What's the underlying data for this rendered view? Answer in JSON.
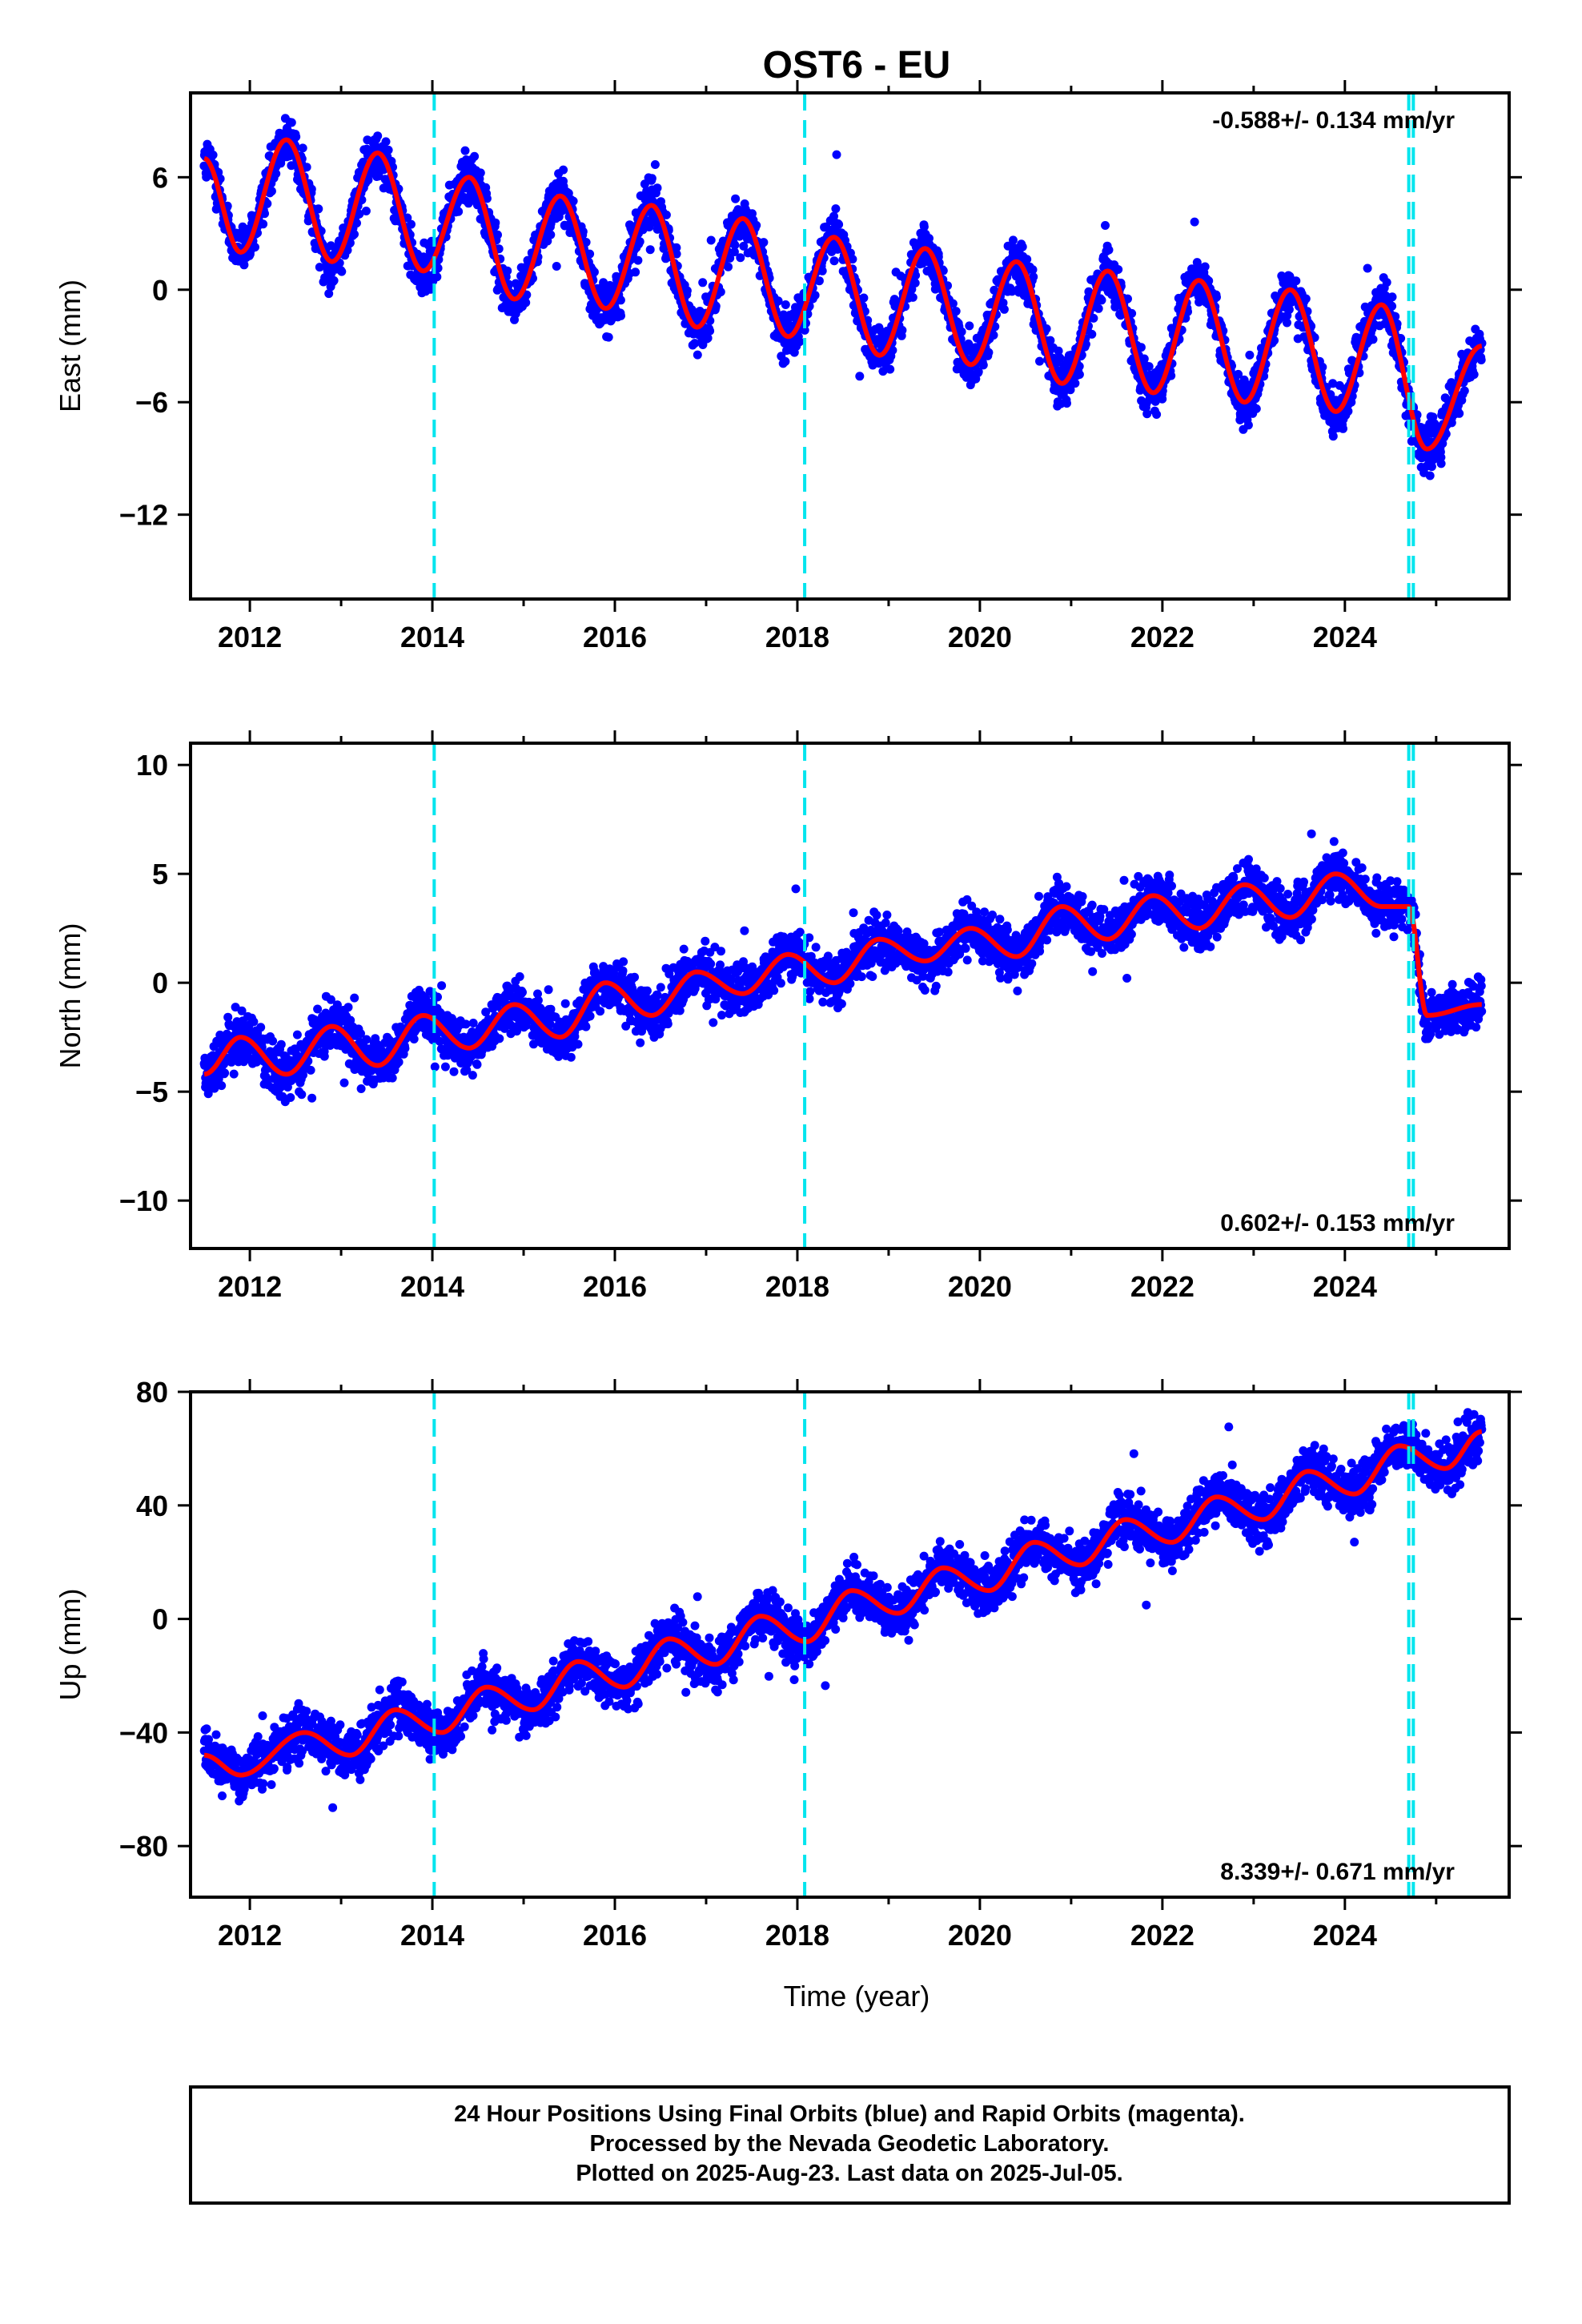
{
  "title": "OST6 - EU",
  "xlabel": "Time (year)",
  "caption": [
    "24 Hour Positions Using Final Orbits (blue) and Rapid Orbits (magenta).",
    "Processed by the Nevada Geodetic Laboratory.",
    "Plotted on 2025-Aug-23. Last data on 2025-Jul-05."
  ],
  "colors": {
    "points": "#0000ff",
    "fit": "#ff0000",
    "events": "#00e5ee",
    "frame": "#000000"
  },
  "chart_data": [
    {
      "type": "scatter",
      "component": "East",
      "ylabel": "East (mm)",
      "rate_label": "-0.588+/- 0.134 mm/yr",
      "rate_position": "top-right",
      "xlim": [
        2011.35,
        2025.8
      ],
      "ylim": [
        -16.5,
        10.5
      ],
      "yticks": [
        6,
        0,
        -6,
        -12
      ],
      "ytick_labels": [
        "6",
        "0",
        "−6",
        "−12"
      ],
      "xticks": [
        2012,
        2014,
        2016,
        2018,
        2020,
        2022,
        2024
      ],
      "events": [
        2014.02,
        2018.08,
        2024.7,
        2024.75
      ],
      "series": [
        {
          "name": "Final Orbits (blue)",
          "x_range": [
            2011.5,
            2025.5
          ],
          "sample_points": [
            [
              2011.5,
              7.0
            ],
            [
              2011.9,
              2.0
            ],
            [
              2012.4,
              8.0
            ],
            [
              2012.9,
              1.5
            ],
            [
              2013.4,
              7.3
            ],
            [
              2013.9,
              1.0
            ],
            [
              2014.4,
              6.0
            ],
            [
              2014.9,
              -0.5
            ],
            [
              2015.4,
              5.0
            ],
            [
              2015.9,
              -1.0
            ],
            [
              2016.4,
              4.5
            ],
            [
              2016.9,
              -2.0
            ],
            [
              2017.4,
              3.8
            ],
            [
              2017.9,
              -2.5
            ],
            [
              2018.4,
              2.8
            ],
            [
              2018.9,
              -3.5
            ],
            [
              2019.4,
              2.2
            ],
            [
              2019.9,
              -4.0
            ],
            [
              2020.4,
              1.5
            ],
            [
              2020.9,
              -5.0
            ],
            [
              2021.4,
              1.0
            ],
            [
              2021.9,
              -5.5
            ],
            [
              2022.4,
              0.5
            ],
            [
              2022.9,
              -6.0
            ],
            [
              2023.4,
              0.0
            ],
            [
              2023.9,
              -6.5
            ],
            [
              2024.4,
              -0.8
            ],
            [
              2024.9,
              -8.5
            ],
            [
              2025.5,
              -3.0
            ]
          ]
        }
      ],
      "fit": {
        "name": "fit",
        "points": [
          [
            2011.5,
            7.0
          ],
          [
            2011.9,
            2.0
          ],
          [
            2012.4,
            8.0
          ],
          [
            2012.9,
            1.5
          ],
          [
            2013.4,
            7.3
          ],
          [
            2013.9,
            1.0
          ],
          [
            2014.4,
            6.0
          ],
          [
            2014.9,
            -0.5
          ],
          [
            2015.4,
            5.0
          ],
          [
            2015.9,
            -1.0
          ],
          [
            2016.4,
            4.5
          ],
          [
            2016.9,
            -2.0
          ],
          [
            2017.4,
            3.8
          ],
          [
            2017.9,
            -2.5
          ],
          [
            2018.4,
            2.8
          ],
          [
            2018.9,
            -3.5
          ],
          [
            2019.4,
            2.2
          ],
          [
            2019.9,
            -4.0
          ],
          [
            2020.4,
            1.5
          ],
          [
            2020.9,
            -5.0
          ],
          [
            2021.4,
            1.0
          ],
          [
            2021.9,
            -5.5
          ],
          [
            2022.4,
            0.5
          ],
          [
            2022.9,
            -6.0
          ],
          [
            2023.4,
            0.0
          ],
          [
            2023.9,
            -6.5
          ],
          [
            2024.4,
            -0.8
          ],
          [
            2024.9,
            -8.5
          ],
          [
            2025.5,
            -3.0
          ]
        ]
      }
    },
    {
      "type": "scatter",
      "component": "North",
      "ylabel": "North (mm)",
      "rate_label": "0.602+/- 0.153 mm/yr",
      "rate_position": "bottom-right",
      "xlim": [
        2011.35,
        2025.8
      ],
      "ylim": [
        -12.2,
        11.0
      ],
      "yticks": [
        10,
        5,
        0,
        -5,
        -10
      ],
      "ytick_labels": [
        "10",
        "5",
        "0",
        "−5",
        "−10"
      ],
      "xticks": [
        2012,
        2014,
        2016,
        2018,
        2020,
        2022,
        2024
      ],
      "events": [
        2014.02,
        2018.08,
        2024.7,
        2024.75
      ],
      "series": [
        {
          "name": "Final Orbits (blue)",
          "x_range": [
            2011.5,
            2025.5
          ],
          "sample_points": [
            [
              2011.5,
              -4.2
            ],
            [
              2011.9,
              -2.5
            ],
            [
              2012.4,
              -4.2
            ],
            [
              2012.9,
              -2.0
            ],
            [
              2013.4,
              -3.8
            ],
            [
              2013.9,
              -1.5
            ],
            [
              2014.4,
              -3.0
            ],
            [
              2014.9,
              -1.0
            ],
            [
              2015.4,
              -2.5
            ],
            [
              2015.9,
              0.0
            ],
            [
              2016.4,
              -1.5
            ],
            [
              2016.9,
              0.5
            ],
            [
              2017.4,
              -0.5
            ],
            [
              2017.9,
              1.3
            ],
            [
              2018.4,
              0.0
            ],
            [
              2018.9,
              2.0
            ],
            [
              2019.4,
              1.0
            ],
            [
              2019.9,
              2.5
            ],
            [
              2020.4,
              1.2
            ],
            [
              2020.9,
              3.5
            ],
            [
              2021.4,
              2.0
            ],
            [
              2021.9,
              4.0
            ],
            [
              2022.4,
              2.5
            ],
            [
              2022.9,
              4.5
            ],
            [
              2023.4,
              3.0
            ],
            [
              2023.9,
              5.0
            ],
            [
              2024.4,
              3.5
            ],
            [
              2024.7,
              3.5
            ],
            [
              2024.9,
              -1.5
            ],
            [
              2025.5,
              -1.0
            ]
          ]
        }
      ],
      "fit": {
        "name": "fit",
        "points": [
          [
            2011.5,
            -4.2
          ],
          [
            2011.9,
            -2.5
          ],
          [
            2012.4,
            -4.2
          ],
          [
            2012.9,
            -2.0
          ],
          [
            2013.4,
            -3.8
          ],
          [
            2013.9,
            -1.5
          ],
          [
            2014.4,
            -3.0
          ],
          [
            2014.9,
            -1.0
          ],
          [
            2015.4,
            -2.5
          ],
          [
            2015.9,
            0.0
          ],
          [
            2016.4,
            -1.5
          ],
          [
            2016.9,
            0.5
          ],
          [
            2017.4,
            -0.5
          ],
          [
            2017.9,
            1.3
          ],
          [
            2018.4,
            0.0
          ],
          [
            2018.9,
            2.0
          ],
          [
            2019.4,
            1.0
          ],
          [
            2019.9,
            2.5
          ],
          [
            2020.4,
            1.2
          ],
          [
            2020.9,
            3.5
          ],
          [
            2021.4,
            2.0
          ],
          [
            2021.9,
            4.0
          ],
          [
            2022.4,
            2.5
          ],
          [
            2022.9,
            4.5
          ],
          [
            2023.4,
            3.0
          ],
          [
            2023.9,
            5.0
          ],
          [
            2024.4,
            3.5
          ],
          [
            2024.7,
            3.5
          ],
          [
            2024.9,
            -1.5
          ],
          [
            2025.5,
            -1.0
          ]
        ]
      }
    },
    {
      "type": "scatter",
      "component": "Up",
      "ylabel": "Up (mm)",
      "rate_label": "8.339+/- 0.671 mm/yr",
      "rate_position": "bottom-right",
      "xlim": [
        2011.35,
        2025.8
      ],
      "ylim": [
        -98,
        80
      ],
      "yticks": [
        80,
        40,
        0,
        -40,
        -80
      ],
      "ytick_labels": [
        "80",
        "40",
        "0",
        "−40",
        "−80"
      ],
      "xticks": [
        2012,
        2014,
        2016,
        2018,
        2020,
        2022,
        2024
      ],
      "events": [
        2014.02,
        2018.08,
        2024.7,
        2024.75
      ],
      "series": [
        {
          "name": "Final Orbits (blue)",
          "x_range": [
            2011.5,
            2025.5
          ],
          "sample_points": [
            [
              2011.5,
              -48.0
            ],
            [
              2011.9,
              -55.0
            ],
            [
              2012.6,
              -40.0
            ],
            [
              2013.1,
              -48.0
            ],
            [
              2013.6,
              -32.0
            ],
            [
              2014.1,
              -40.0
            ],
            [
              2014.6,
              -24.0
            ],
            [
              2015.1,
              -32.0
            ],
            [
              2015.6,
              -15.0
            ],
            [
              2016.1,
              -24.0
            ],
            [
              2016.6,
              -7.0
            ],
            [
              2017.1,
              -16.0
            ],
            [
              2017.6,
              1.0
            ],
            [
              2018.1,
              -8.0
            ],
            [
              2018.6,
              10.0
            ],
            [
              2019.1,
              2.0
            ],
            [
              2019.6,
              18.0
            ],
            [
              2020.1,
              10.0
            ],
            [
              2020.6,
              27.0
            ],
            [
              2021.1,
              19.0
            ],
            [
              2021.6,
              35.0
            ],
            [
              2022.1,
              27.0
            ],
            [
              2022.6,
              43.0
            ],
            [
              2023.1,
              35.0
            ],
            [
              2023.6,
              52.0
            ],
            [
              2024.1,
              44.0
            ],
            [
              2024.6,
              61.0
            ],
            [
              2025.1,
              53.0
            ],
            [
              2025.5,
              66.0
            ]
          ]
        }
      ],
      "fit": {
        "name": "fit",
        "points": [
          [
            2011.5,
            -48.0
          ],
          [
            2011.9,
            -55.0
          ],
          [
            2012.6,
            -40.0
          ],
          [
            2013.1,
            -48.0
          ],
          [
            2013.6,
            -32.0
          ],
          [
            2014.1,
            -40.0
          ],
          [
            2014.6,
            -24.0
          ],
          [
            2015.1,
            -32.0
          ],
          [
            2015.6,
            -15.0
          ],
          [
            2016.1,
            -24.0
          ],
          [
            2016.6,
            -7.0
          ],
          [
            2017.1,
            -16.0
          ],
          [
            2017.6,
            1.0
          ],
          [
            2018.1,
            -8.0
          ],
          [
            2018.6,
            10.0
          ],
          [
            2019.1,
            2.0
          ],
          [
            2019.6,
            18.0
          ],
          [
            2020.1,
            10.0
          ],
          [
            2020.6,
            27.0
          ],
          [
            2021.1,
            19.0
          ],
          [
            2021.6,
            35.0
          ],
          [
            2022.1,
            27.0
          ],
          [
            2022.6,
            43.0
          ],
          [
            2023.1,
            35.0
          ],
          [
            2023.6,
            52.0
          ],
          [
            2024.1,
            44.0
          ],
          [
            2024.6,
            61.0
          ],
          [
            2025.1,
            53.0
          ],
          [
            2025.5,
            66.0
          ]
        ]
      }
    }
  ]
}
